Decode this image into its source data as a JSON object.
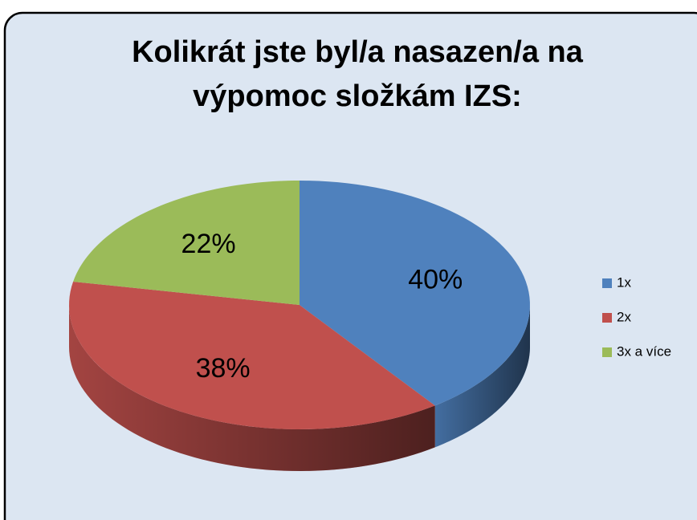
{
  "chart_data": {
    "type": "pie",
    "title": "Kolikrát jste byl/a nasazen/a na výpomoc složkám IZS:",
    "categories": [
      "1x",
      "2x",
      "3x a více"
    ],
    "values": [
      40,
      38,
      22
    ],
    "value_labels": [
      "40%",
      "38%",
      "22%"
    ],
    "colors": [
      "#4f81bd",
      "#c0504d",
      "#9bbb59"
    ],
    "legend": "right"
  }
}
